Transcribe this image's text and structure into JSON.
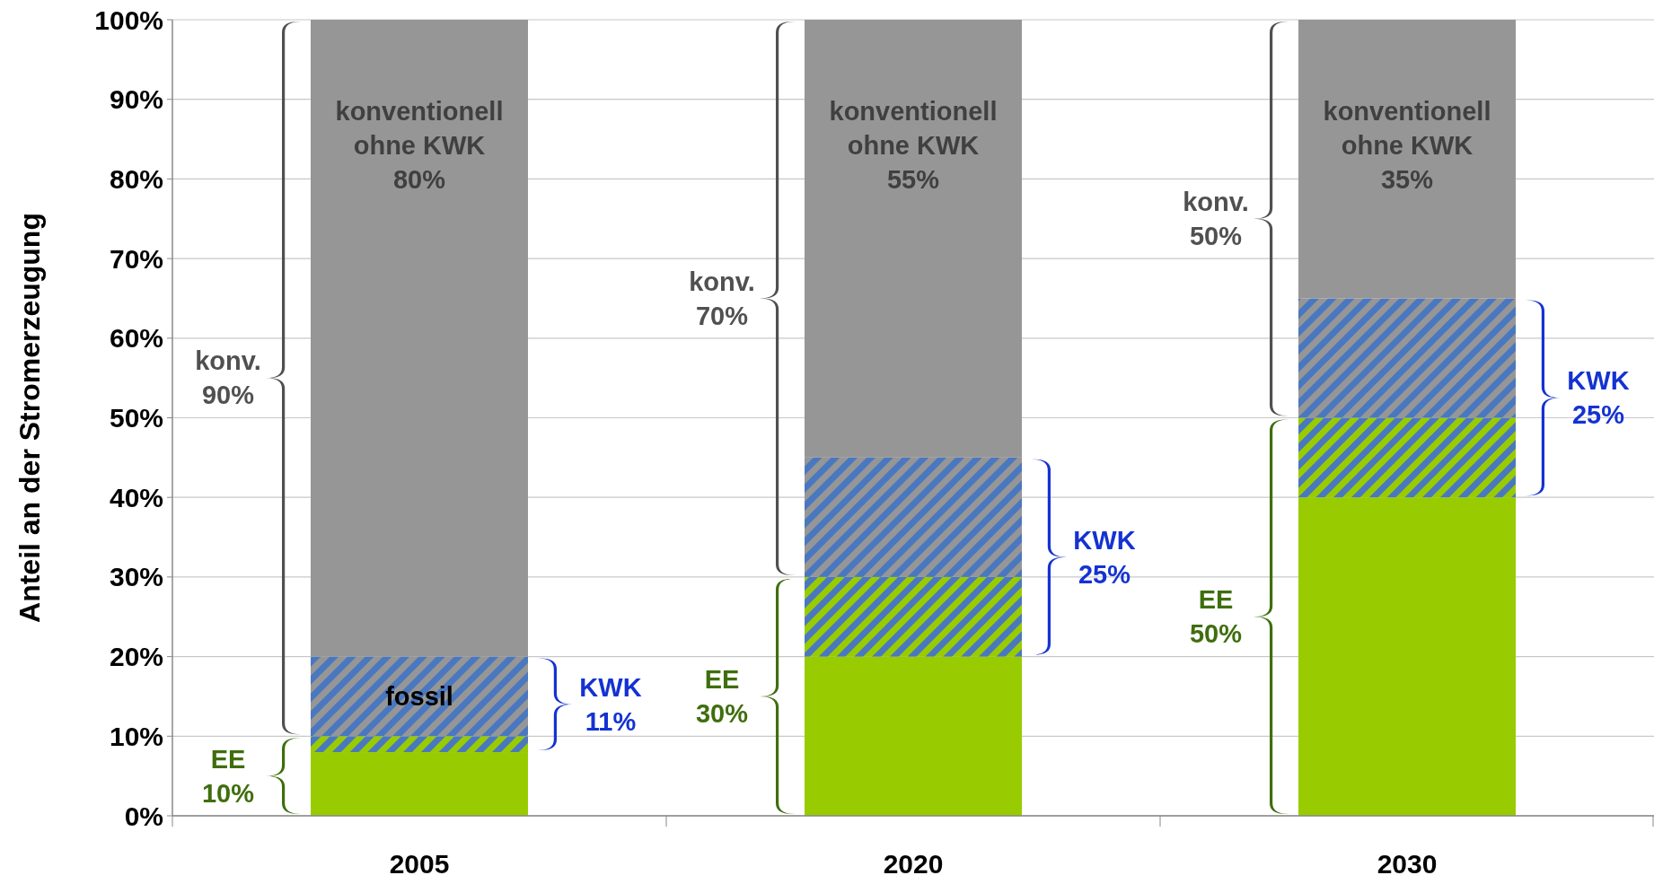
{
  "chart_data": {
    "type": "bar",
    "stacked": true,
    "ylabel": "Anteil an der Stromerzeugung",
    "categories": [
      "2005",
      "2020",
      "2030"
    ],
    "series": [
      {
        "color": "#99cc00",
        "values": [
          8,
          20,
          40
        ]
      },
      {
        "color": "#99cc00",
        "values": [
          2,
          10,
          10
        ]
      },
      {
        "color": "#4a78c0",
        "values": [
          10,
          15,
          15
        ]
      },
      {
        "color": "#969696",
        "values": [
          80,
          55,
          35
        ]
      }
    ],
    "ylim": [
      0,
      100
    ],
    "yticks": [
      {
        "value": 0,
        "label": "0%"
      },
      {
        "value": 10,
        "label": "10%"
      },
      {
        "value": 20,
        "label": "20%"
      },
      {
        "value": 30,
        "label": "30%"
      },
      {
        "value": 40,
        "label": "40%"
      },
      {
        "value": 50,
        "label": "50%"
      },
      {
        "value": 60,
        "label": "60%"
      },
      {
        "value": 70,
        "label": "70%"
      },
      {
        "value": 80,
        "label": "80%"
      },
      {
        "value": 90,
        "label": "90%"
      },
      {
        "value": 100,
        "label": "100%"
      }
    ],
    "grid": "y",
    "annotations": [
      "konv.\n90%",
      "EE\n10%",
      "KWK\n11%",
      "konventionell\nohne KWK\n80%",
      "fossil",
      "konv.\n70%",
      "EE\n30%",
      "KWK\n25%",
      "konventionell\nohne KWK\n55%",
      "konv.\n50%",
      "EE\n50%",
      "KWK\n25%",
      "konventionell\nohne KWK\n35%"
    ]
  }
}
